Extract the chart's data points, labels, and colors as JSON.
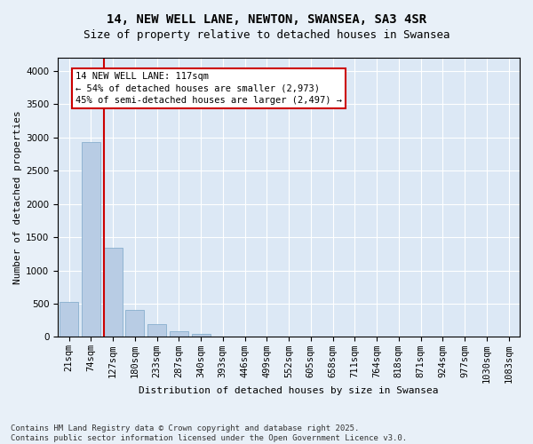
{
  "title1": "14, NEW WELL LANE, NEWTON, SWANSEA, SA3 4SR",
  "title2": "Size of property relative to detached houses in Swansea",
  "xlabel": "Distribution of detached houses by size in Swansea",
  "ylabel": "Number of detached properties",
  "categories": [
    "21sqm",
    "74sqm",
    "127sqm",
    "180sqm",
    "233sqm",
    "287sqm",
    "340sqm",
    "393sqm",
    "446sqm",
    "499sqm",
    "552sqm",
    "605sqm",
    "658sqm",
    "711sqm",
    "764sqm",
    "818sqm",
    "871sqm",
    "924sqm",
    "977sqm",
    "1030sqm",
    "1083sqm"
  ],
  "values": [
    530,
    2930,
    1340,
    410,
    195,
    90,
    40,
    0,
    0,
    0,
    0,
    0,
    0,
    0,
    0,
    0,
    0,
    0,
    0,
    0,
    0
  ],
  "bar_color": "#b8cce4",
  "bar_edge_color": "#7aa6c8",
  "vline_x_index": 2,
  "vline_color": "#cc0000",
  "annotation_text": "14 NEW WELL LANE: 117sqm\n← 54% of detached houses are smaller (2,973)\n45% of semi-detached houses are larger (2,497) →",
  "annotation_box_color": "#cc0000",
  "ylim": [
    0,
    4200
  ],
  "yticks": [
    0,
    500,
    1000,
    1500,
    2000,
    2500,
    3000,
    3500,
    4000
  ],
  "bg_color": "#e8f0f8",
  "plot_bg_color": "#dce8f5",
  "footer": "Contains HM Land Registry data © Crown copyright and database right 2025.\nContains public sector information licensed under the Open Government Licence v3.0.",
  "title_fontsize": 10,
  "subtitle_fontsize": 9,
  "axis_fontsize": 8,
  "tick_fontsize": 7.5
}
